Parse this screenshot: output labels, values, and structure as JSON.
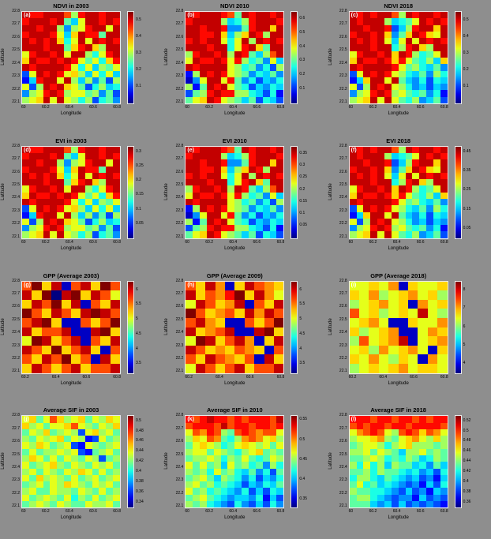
{
  "figure": {
    "background": "#8e8e8e",
    "rows": 4,
    "cols": 3,
    "colormap": "jet"
  },
  "chart_data": {
    "type": "heatmap",
    "x_range": [
      60,
      60.8
    ],
    "y_range": [
      22.1,
      22.8
    ],
    "note": "12-panel gridded raster figure; cell values encoded as hex digits 0-f mapped linearly from vmin to vmax through a jet colormap",
    "panels": [
      {
        "id": "a",
        "label": "(a)",
        "title": "NDVI in 2003",
        "xlabel": "Longitude",
        "ylabel": "Latitude",
        "xticks": [
          "60",
          "60.2",
          "60.4",
          "60.6",
          "60.8"
        ],
        "yticks": [
          "22.8",
          "22.7",
          "22.6",
          "22.5",
          "22.4",
          "22.3",
          "22.2",
          "22.1"
        ],
        "vmin": 0,
        "vmax": 0.55,
        "cticks": [
          "0.5",
          "0.4",
          "0.3",
          "0.2",
          "0.1"
        ],
        "grid_ref": "veg2003"
      },
      {
        "id": "b",
        "label": "(b)",
        "title": "NDVI 2010",
        "xlabel": "Longitude",
        "ylabel": "Latitude",
        "xticks": [
          "60",
          "60.2",
          "60.4",
          "60.6",
          "60.8"
        ],
        "yticks": [
          "22.8",
          "22.7",
          "22.6",
          "22.5",
          "22.4",
          "22.3",
          "22.2",
          "22.1"
        ],
        "vmin": 0,
        "vmax": 0.65,
        "cticks": [
          "0.6",
          "0.5",
          "0.4",
          "0.3",
          "0.2",
          "0.1"
        ],
        "grid_ref": "veg2010"
      },
      {
        "id": "c",
        "label": "(c)",
        "title": "NDVI 2018",
        "xlabel": "Longitude",
        "ylabel": "Latitude",
        "xticks": [
          "60",
          "60.2",
          "60.4",
          "60.6",
          "60.8"
        ],
        "yticks": [
          "22.8",
          "22.7",
          "22.6",
          "22.5",
          "22.4",
          "22.3",
          "22.2",
          "22.1"
        ],
        "vmin": 0,
        "vmax": 0.55,
        "cticks": [
          "0.5",
          "0.4",
          "0.3",
          "0.2",
          "0.1"
        ],
        "grid_ref": "veg2018"
      },
      {
        "id": "d",
        "label": "(d)",
        "title": "EVI in 2003",
        "xlabel": "Longitude",
        "ylabel": "Latitude",
        "xticks": [
          "60",
          "60.2",
          "60.4",
          "60.6",
          "60.8"
        ],
        "yticks": [
          "22.8",
          "22.7",
          "22.6",
          "22.5",
          "22.4",
          "22.3",
          "22.2",
          "22.1"
        ],
        "vmin": 0,
        "vmax": 0.32,
        "cticks": [
          "0.3",
          "0.25",
          "0.2",
          "0.15",
          "0.1",
          "0.05"
        ],
        "grid_ref": "veg2003"
      },
      {
        "id": "e",
        "label": "(e)",
        "title": "EVI 2010",
        "xlabel": "Longitude",
        "ylabel": "Latitude",
        "xticks": [
          "60",
          "60.2",
          "60.4",
          "60.6",
          "60.8"
        ],
        "yticks": [
          "22.8",
          "22.7",
          "22.6",
          "22.5",
          "22.4",
          "22.3",
          "22.2",
          "22.1"
        ],
        "vmin": 0,
        "vmax": 0.38,
        "cticks": [
          "0.35",
          "0.3",
          "0.25",
          "0.2",
          "0.15",
          "0.1",
          "0.05"
        ],
        "grid_ref": "veg2010"
      },
      {
        "id": "f",
        "label": "(f)",
        "title": "EVI 2018",
        "xlabel": "Longitude",
        "ylabel": "Latitude",
        "xticks": [
          "60",
          "60.2",
          "60.4",
          "60.6",
          "60.8"
        ],
        "yticks": [
          "22.8",
          "22.7",
          "22.6",
          "22.5",
          "22.4",
          "22.3",
          "22.2",
          "22.1"
        ],
        "vmin": 0,
        "vmax": 0.48,
        "cticks": [
          "0.45",
          "0.35",
          "0.25",
          "0.15",
          "0.05"
        ],
        "grid_ref": "veg2018"
      },
      {
        "id": "g",
        "label": "(g)",
        "title": "GPP (Average 2003)",
        "xlabel": "Longitude",
        "ylabel": "Latitude",
        "xticks": [
          "60.2",
          "60.4",
          "60.6",
          "60.8"
        ],
        "yticks": [
          "22.8",
          "22.7",
          "22.6",
          "22.5",
          "22.4",
          "22.3",
          "22.2",
          "22.1"
        ],
        "vmin": 3.2,
        "vmax": 6.3,
        "cticks": [
          "6",
          "5.5",
          "5",
          "4.5",
          "4",
          "3.5"
        ],
        "grid_ref": "gpp2003"
      },
      {
        "id": "h",
        "label": "(h)",
        "title": "GPP (Average 2009)",
        "xlabel": "Longitude",
        "ylabel": "Latitude",
        "xticks": [
          "60.2",
          "60.4",
          "60.6",
          "60.8"
        ],
        "yticks": [
          "22.8",
          "22.7",
          "22.6",
          "22.5",
          "22.4",
          "22.3",
          "22.2",
          "22.1"
        ],
        "vmin": 3.2,
        "vmax": 6.3,
        "cticks": [
          "6",
          "5.5",
          "5",
          "4.5",
          "4",
          "3.5"
        ],
        "grid_ref": "gpp2009"
      },
      {
        "id": "i",
        "label": "(i)",
        "title": "GPP (Average 2018)",
        "xlabel": "Longitude",
        "ylabel": "Latitude",
        "xticks": [
          "60.2",
          "60.4",
          "60.6",
          "60.8"
        ],
        "yticks": [
          "22.8",
          "22.7",
          "22.6",
          "22.5",
          "22.4",
          "22.3",
          "22.2",
          "22.1"
        ],
        "vmin": 3.5,
        "vmax": 8.5,
        "cticks": [
          "8",
          "7",
          "6",
          "5",
          "4"
        ],
        "grid_ref": "gpp2018"
      },
      {
        "id": "j",
        "label": "(j)",
        "title": "Average SIF in 2003",
        "xlabel": "Longitude",
        "ylabel": "Latitude",
        "xticks": [
          "60",
          "60.2",
          "60.4",
          "60.6",
          "60.8"
        ],
        "yticks": [
          "22.8",
          "22.7",
          "22.6",
          "22.5",
          "22.4",
          "22.3",
          "22.2",
          "22.1"
        ],
        "vmin": 0.33,
        "vmax": 0.51,
        "cticks": [
          "0.5",
          "0.48",
          "0.46",
          "0.44",
          "0.42",
          "0.4",
          "0.38",
          "0.36",
          "0.34"
        ],
        "grid_ref": "sif2003"
      },
      {
        "id": "k",
        "label": "(k)",
        "title": "Average SIF in 2010",
        "xlabel": "Longitude",
        "ylabel": "Latitude",
        "xticks": [
          "60",
          "60.2",
          "60.4",
          "60.6",
          "60.8"
        ],
        "yticks": [
          "22.8",
          "22.7",
          "22.6",
          "22.5",
          "22.4",
          "22.3",
          "22.2",
          "22.1"
        ],
        "vmin": 0.33,
        "vmax": 0.56,
        "cticks": [
          "0.55",
          "0.5",
          "0.45",
          "0.4",
          "0.35"
        ],
        "grid_ref": "sif2010"
      },
      {
        "id": "l",
        "label": "(l)",
        "title": "Average SIF in 2018",
        "xlabel": "Longitude",
        "ylabel": "Latitude",
        "xticks": [
          "60",
          "60.2",
          "60.4",
          "60.6",
          "60.8"
        ],
        "yticks": [
          "22.8",
          "22.7",
          "22.6",
          "22.5",
          "22.4",
          "22.3",
          "22.2",
          "22.1"
        ],
        "vmin": 0.35,
        "vmax": 0.53,
        "cticks": [
          "0.52",
          "0.5",
          "0.48",
          "0.46",
          "0.44",
          "0.42",
          "0.4",
          "0.38",
          "0.36"
        ],
        "grid_ref": "sif2018"
      }
    ],
    "grids": {
      "veg2003": [
        "eddeeec8deedee",
        "deeede759eeded",
        "eedee8489dee9e",
        "deeed95aedd7ee",
        "ededea69e9eded",
        "eeedee7adea8ee",
        "9deede9ee869de",
        "aeddeded9796ad",
        "edeeeed9695879",
        "39eded9a859695",
        "25dee9e8584738",
        "938edea9736856",
        "489ded89978473",
        "89ae9e98683674"
      ],
      "veg2010": [
        "edeeedc7edeede",
        "deeee8568deeed",
        "eedeed447deeae",
        "eeddea58aed8ee",
        "dedee969e8eded",
        "eeedee69dea7ee",
        "8deede8ed758ce",
        "9edded9d867495",
        "edeeee98674638",
        "28eded98746574",
        "149ee9d7463546",
        "827ede97635465",
        "378dedd8865362",
        "79aed987573653"
      ],
      "veg2018": [
        "ededeec8edeede",
        "edeee85679eded",
        "eedeed358deeae",
        "deedea47aeda9e",
        "edede959e9eded",
        "eeedee68dea8ee",
        "9deedeaed8679e",
        "aeddedad97685a",
        "edeeeed9786574",
        "39eded98657486",
        "25aee9e7546365",
        "938ede98645354",
        "489ded89767462",
        "89ae9e97684573"
      ],
      "gpp2003": [
        "cfae1ceafc",
        "eaf0efaec9",
        "aecfae1cae",
        "fcaecaefec",
        "cefa11cacf",
        "eacce11efa",
        "9feace1cae",
        "ecafacea1c",
        "caecfac1ea",
        "aecaceacce"
      ],
      "gpp2009": [
        "caeb1aecba",
        "eacbdfaeb9",
        "9ecabe1cae",
        "fcabcaebec",
        "ceba11cacf",
        "eabce11efa",
        "9feaceb1ae",
        "ecabacba1c",
        "caecbac1ea",
        "9ecaceacce"
      ],
      "gpp2018": [
        "99a9b1a99a",
        "a9b89ab9a8",
        "89ab9a1b9a",
        "c9a89a9e98",
        "9ab911a99b",
        "a89ab119ba",
        "8c9abe19ab",
        "9a8b9ab91a",
        "a9b98a91b9",
        "89a9ab9aa9"
      ],
      "sif2003": [
        "9a79ca89a798a9",
        "a89799ac98798a",
        "798a789839a897",
        "87989a79823978",
        "98a97893298789",
        "79788989327897",
        "8a979798798378",
        "9789a879879897",
        "89798798a97978",
        "97a89879789789",
        "789798a9879897",
        "89779887987978",
        "97898796879789",
        "78987987798897"
      ],
      "sif2010": [
        "dcdeddcdcdddce",
        "cdddcecddcddcd",
        "9cbdc87cdcbcc9",
        "8a9cb768bcb9a8",
        "79a98679a98979",
        "8997987689a787",
        "78898687976798",
        "97978597867486",
        "87869786574637",
        "78975876463546",
        "89786765354657",
        "97867654635365",
        "78976545546253",
        "87865436435364"
      ],
      "sif2018": [
        "dddcddcddcdcdd",
        "cdcddcddcddddc",
        "9bcdc98cdcacb9",
        "899ab879ab98a8",
        "78998689a88878",
        "88979875889787",
        "77898676875687",
        "86968587756475",
        "77868776564536",
        "68865765453425",
        "79675654342536",
        "87766543534254",
        "78865434425343",
        "77754535343432"
      ]
    }
  }
}
